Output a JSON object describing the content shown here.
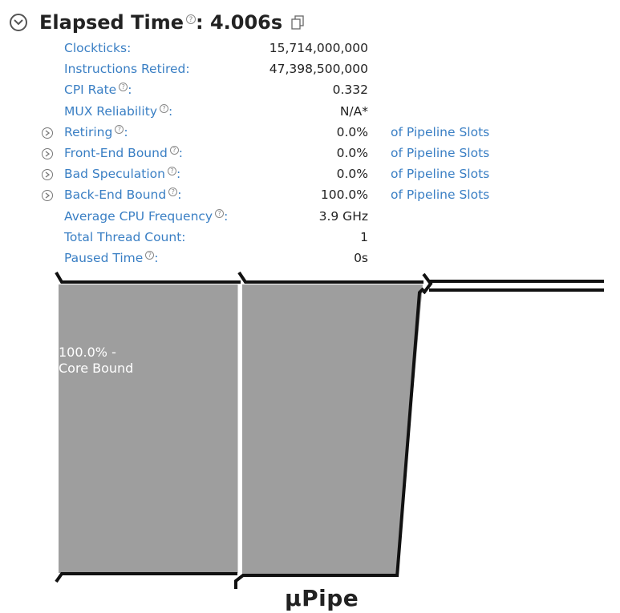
{
  "header": {
    "title": "Elapsed Time",
    "help_mark": "?",
    "value": "4.006s"
  },
  "metrics": [
    {
      "label": "Clockticks",
      "value": "15,714,000,000",
      "has_help": false,
      "expandable": false,
      "unit": ""
    },
    {
      "label": "Instructions Retired",
      "value": "47,398,500,000",
      "has_help": false,
      "expandable": false,
      "unit": ""
    },
    {
      "label": "CPI Rate",
      "value": "0.332",
      "has_help": true,
      "expandable": false,
      "unit": ""
    },
    {
      "label": "MUX Reliability",
      "value": "N/A*",
      "has_help": true,
      "expandable": false,
      "unit": ""
    },
    {
      "label": "Retiring",
      "value": "0.0%",
      "has_help": true,
      "expandable": true,
      "unit": "of Pipeline Slots"
    },
    {
      "label": "Front-End Bound",
      "value": "0.0%",
      "has_help": true,
      "expandable": true,
      "unit": "of Pipeline Slots"
    },
    {
      "label": "Bad Speculation",
      "value": "0.0%",
      "has_help": true,
      "expandable": true,
      "unit": "of Pipeline Slots"
    },
    {
      "label": "Back-End Bound",
      "value": "100.0%",
      "has_help": true,
      "expandable": true,
      "unit": "of Pipeline Slots"
    },
    {
      "label": "Average CPU Frequency",
      "value": "3.9 GHz",
      "has_help": true,
      "expandable": false,
      "unit": ""
    },
    {
      "label": "Total Thread Count",
      "value": "1",
      "has_help": false,
      "expandable": false,
      "unit": ""
    },
    {
      "label": "Paused Time",
      "value": "0s",
      "has_help": true,
      "expandable": false,
      "unit": ""
    }
  ],
  "pipe": {
    "title": "µPipe",
    "core_bound_line1": "100.0% -",
    "core_bound_line2": "Core Bound",
    "fill_color": "#9e9e9e"
  }
}
